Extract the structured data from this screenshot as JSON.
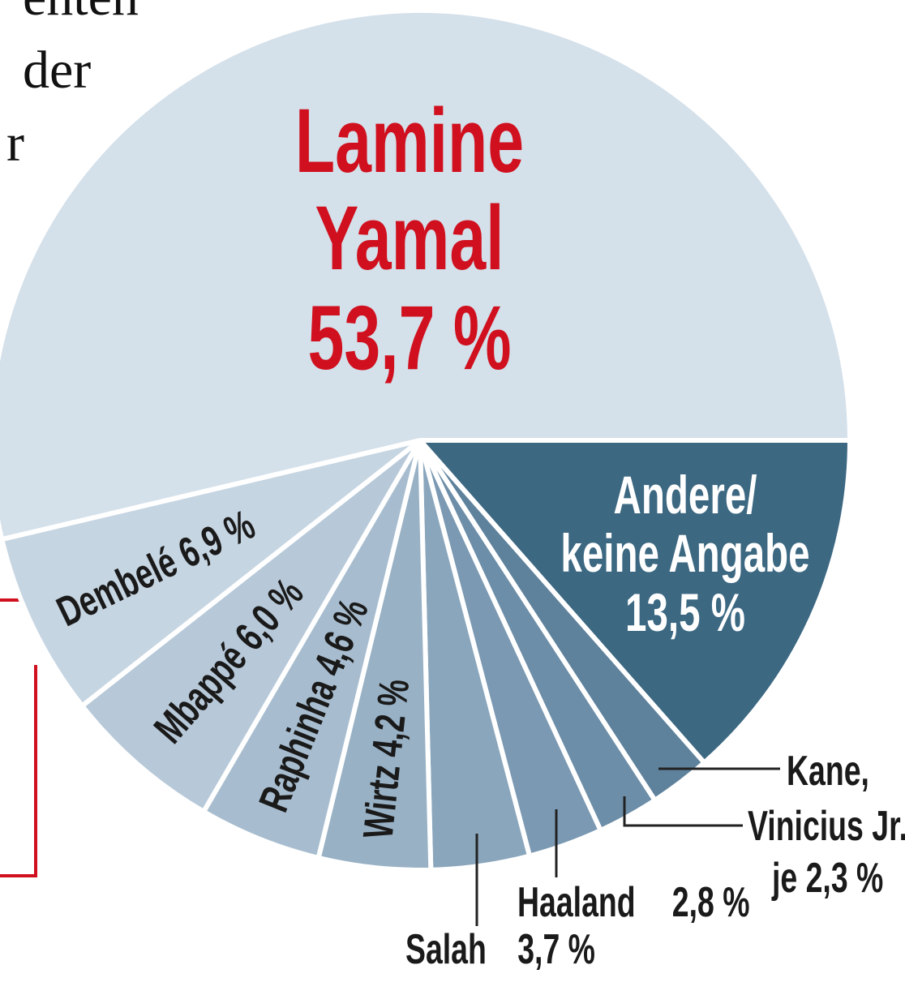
{
  "chart_data": {
    "type": "pie",
    "categories": [
      "Andere/\nkeine Angabe",
      "Kane,",
      "Vinicius Jr.",
      "Haaland",
      "Salah",
      "Wirtz",
      "Raphinha",
      "Mbappé",
      "Dembelé",
      "Lamine\nYamal"
    ],
    "values": [
      13.5,
      2.3,
      2.3,
      2.8,
      3.7,
      4.2,
      4.6,
      6.0,
      6.9,
      53.7
    ],
    "value_labels": [
      "13,5 %",
      null,
      null,
      "2,8 %",
      "3,7 %",
      "4,2 %",
      "4,6 %",
      "6,0 %",
      "6,9 %",
      "53,7 %"
    ],
    "colors": [
      "#3c6882",
      "#5f829c",
      "#6d8ea8",
      "#7b99b2",
      "#8aa6bc",
      "#98b1c5",
      "#a7bdcf",
      "#b7c9d9",
      "#c6d5e2",
      "#d4e0ea"
    ],
    "label_colors": [
      "#ffffff",
      "#1a1a1a",
      "#1a1a1a",
      "#1a1a1a",
      "#1a1a1a",
      "#1a1a1a",
      "#1a1a1a",
      "#1a1a1a",
      "#1a1a1a",
      "#d0101e"
    ],
    "annotation": "je 2,3 %"
  },
  "article_fragment": [
    "enten",
    "der",
    "r"
  ]
}
